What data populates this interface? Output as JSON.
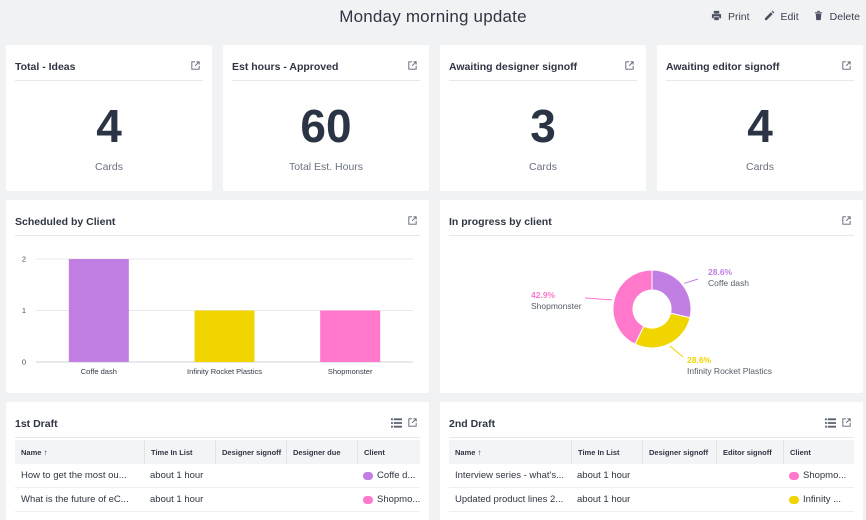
{
  "header": {
    "title": "Monday morning update",
    "actions": [
      {
        "label": "Print",
        "icon": "printer-icon"
      },
      {
        "label": "Edit",
        "icon": "pencil-icon"
      },
      {
        "label": "Delete",
        "icon": "trash-icon"
      }
    ]
  },
  "stats": [
    {
      "title": "Total - Ideas",
      "value": "4",
      "sub": "Cards"
    },
    {
      "title": "Est hours - Approved",
      "value": "60",
      "sub": "Total Est. Hours"
    },
    {
      "title": "Awaiting designer signoff",
      "value": "3",
      "sub": "Cards"
    },
    {
      "title": "Awaiting editor signoff",
      "value": "4",
      "sub": "Cards"
    }
  ],
  "scheduled": {
    "title": "Scheduled by Client"
  },
  "inprogress": {
    "title": "In progress by client"
  },
  "chart_data": [
    {
      "type": "bar",
      "title": "Scheduled by Client",
      "categories": [
        "Coffe dash",
        "Infinity Rocket Plastics",
        "Shopmonster"
      ],
      "values": [
        2,
        1,
        1
      ],
      "colors": [
        "#c17ee3",
        "#f0d500",
        "#ff78cb"
      ],
      "ylim": [
        0,
        2
      ],
      "yticks": [
        "0",
        "1",
        "2"
      ],
      "grid": true
    },
    {
      "type": "pie",
      "title": "In progress by client",
      "slices": [
        {
          "label": "Coffe dash",
          "value": 28.6,
          "pct": "28.6%",
          "color": "#c17ee3"
        },
        {
          "label": "Infinity Rocket Plastics",
          "value": 28.6,
          "pct": "28.6%",
          "color": "#f0d500"
        },
        {
          "label": "Shopmonster",
          "value": 42.9,
          "pct": "42.9%",
          "color": "#ff78cb"
        }
      ]
    }
  ],
  "draft1": {
    "title": "1st Draft",
    "columns": [
      "Name",
      "Time In List",
      "Designer signoff",
      "Designer due",
      "Client"
    ],
    "rows": [
      {
        "name": "How to get the most ou...",
        "time": "about 1 hour",
        "client": "Coffe d...",
        "color": "#c17ee3"
      },
      {
        "name": "What is the future of eC...",
        "time": "about 1 hour",
        "client": "Shopmo...",
        "color": "#ff78cb"
      }
    ]
  },
  "draft2": {
    "title": "2nd Draft",
    "columns": [
      "Name",
      "Time In List",
      "Designer signoff",
      "Editor signoff",
      "Client"
    ],
    "rows": [
      {
        "name": "Interview series - what's...",
        "time": "about 1 hour",
        "client": "Shopmo...",
        "color": "#ff78cb"
      },
      {
        "name": "Updated product lines 2...",
        "time": "about 1 hour",
        "client": "Infinity ...",
        "color": "#f0d500"
      }
    ]
  }
}
